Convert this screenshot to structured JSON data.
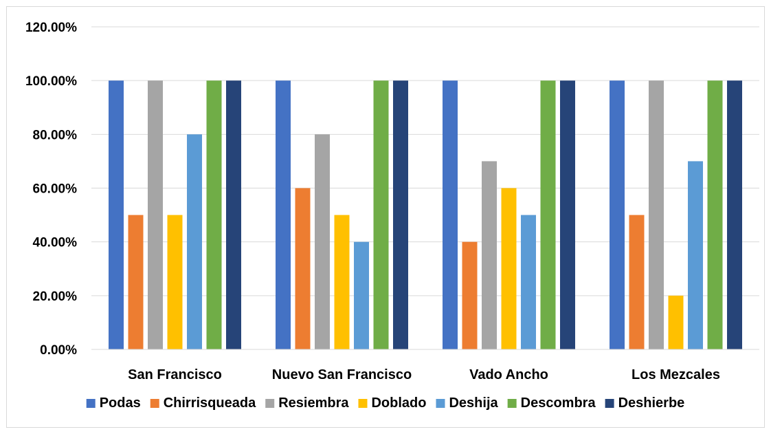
{
  "chart_data": {
    "type": "bar",
    "categories": [
      "San Francisco",
      "Nuevo San Francisco",
      "Vado Ancho",
      "Los Mezcales"
    ],
    "series": [
      {
        "name": "Podas",
        "color": "#4472C4",
        "values": [
          1.0,
          1.0,
          1.0,
          1.0
        ]
      },
      {
        "name": "Chirrisqueada",
        "color": "#ED7D31",
        "values": [
          0.5,
          0.6,
          0.4,
          0.5
        ]
      },
      {
        "name": "Resiembra",
        "color": "#A5A5A5",
        "values": [
          1.0,
          0.8,
          0.7,
          1.0
        ]
      },
      {
        "name": "Doblado",
        "color": "#FFC000",
        "values": [
          0.5,
          0.5,
          0.6,
          0.2
        ]
      },
      {
        "name": "Deshija",
        "color": "#5B9BD5",
        "values": [
          0.8,
          0.4,
          0.5,
          0.7
        ]
      },
      {
        "name": "Descombra",
        "color": "#70AD47",
        "values": [
          1.0,
          1.0,
          1.0,
          1.0
        ]
      },
      {
        "name": "Deshierbe",
        "color": "#264478",
        "values": [
          1.0,
          1.0,
          1.0,
          1.0
        ]
      }
    ],
    "yticks": [
      "0.00%",
      "20.00%",
      "40.00%",
      "60.00%",
      "80.00%",
      "100.00%",
      "120.00%"
    ],
    "ylim": [
      0,
      1.2
    ],
    "grid": true,
    "legend_position": "bottom",
    "title": "",
    "xlabel": "",
    "ylabel": ""
  }
}
